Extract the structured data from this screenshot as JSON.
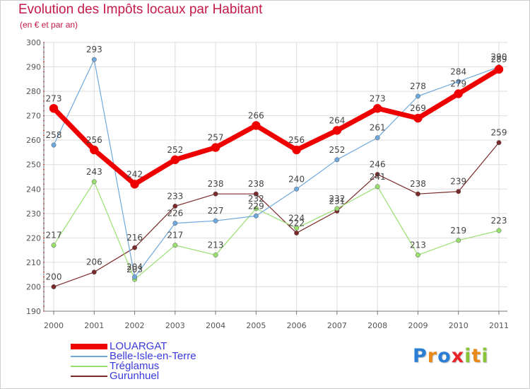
{
  "header": {
    "title": "Evolution des Impôts locaux par Habitant",
    "subtitle": "(en € et par an)"
  },
  "chart_data": {
    "type": "line",
    "x": [
      "2000",
      "2001",
      "2002",
      "2003",
      "2004",
      "2005",
      "2006",
      "2007",
      "2008",
      "2009",
      "2010",
      "2011"
    ],
    "ylim": [
      190,
      300
    ],
    "yticks": [
      190,
      200,
      210,
      220,
      230,
      240,
      250,
      260,
      270,
      280,
      290,
      300
    ],
    "grid": true,
    "legend": "bottom-left",
    "series": [
      {
        "name": "LOUARGAT",
        "color": "#ee0000",
        "values": [
          273,
          256,
          242,
          252,
          257,
          266,
          256,
          264,
          273,
          269,
          279,
          289
        ]
      },
      {
        "name": "Belle-Isle-en-Terre",
        "color": "#6fa8dc",
        "values": [
          258,
          293,
          204,
          226,
          227,
          229,
          240,
          252,
          261,
          278,
          284,
          290
        ]
      },
      {
        "name": "Tréglamus",
        "color": "#99e070",
        "values": [
          217,
          243,
          203,
          217,
          213,
          232,
          224,
          232,
          241,
          213,
          219,
          223
        ]
      },
      {
        "name": "Gurunhuel",
        "color": "#7a2a2a",
        "values": [
          200,
          206,
          216,
          233,
          238,
          238,
          222,
          231,
          246,
          238,
          239,
          259
        ]
      }
    ]
  },
  "logo": {
    "letters": [
      "P",
      "r",
      "o",
      "x",
      "i",
      "t",
      "i"
    ],
    "colors": [
      "#2a7fd4",
      "#e88a1a",
      "#2a7fd4",
      "#e8242a",
      "#8ac43a",
      "#e88a1a",
      "#8ac43a"
    ]
  }
}
